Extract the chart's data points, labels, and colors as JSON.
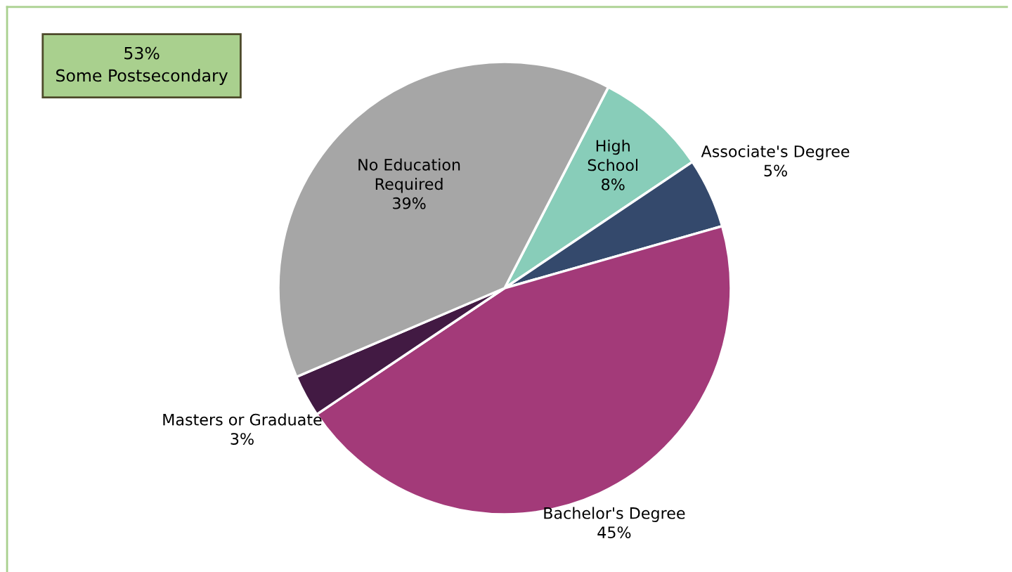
{
  "chart_data": {
    "type": "pie",
    "categories": [
      "High School",
      "Associate's Degree",
      "Bachelor's Degree",
      "Masters or Graduate",
      "No Education Required"
    ],
    "values": [
      8,
      5,
      45,
      3,
      39
    ],
    "value_labels": [
      "8%",
      "5%",
      "45%",
      "3%",
      "39%"
    ],
    "colors": [
      "#88cdb9",
      "#34496c",
      "#a33a79",
      "#421a43",
      "#a6a6a6"
    ],
    "annotations": [
      "53%\nSome Postsecondary"
    ]
  }
}
